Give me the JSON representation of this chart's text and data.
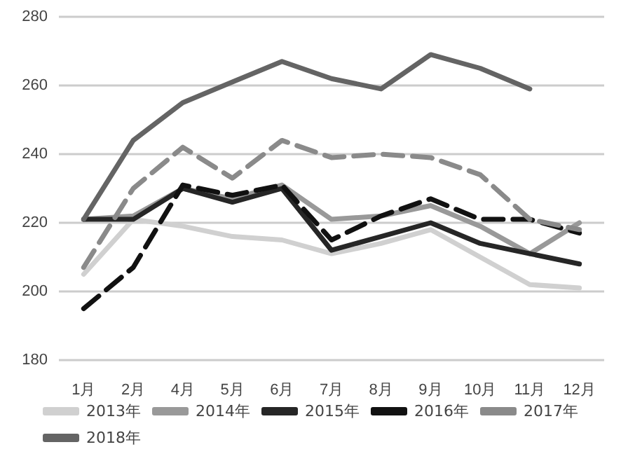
{
  "chart_data": {
    "type": "line",
    "categories": [
      "1月",
      "2月",
      "4月",
      "5月",
      "6月",
      "7月",
      "8月",
      "9月",
      "10月",
      "11月",
      "12月"
    ],
    "ylim": [
      180,
      280
    ],
    "yticks": [
      180,
      200,
      220,
      240,
      260,
      280
    ],
    "grid": "y",
    "legend": "bottom",
    "marker": "none",
    "series": [
      {
        "name": "2013年",
        "color": "#d0d0d0",
        "line_style": "solid",
        "values": [
          205,
          221,
          219,
          216,
          215,
          211,
          214,
          218,
          210,
          202,
          201
        ]
      },
      {
        "name": "2014年",
        "color": "#999999",
        "line_style": "solid",
        "values": [
          221,
          222,
          230,
          227,
          231,
          221,
          222,
          225,
          219,
          211,
          220
        ]
      },
      {
        "name": "2015年",
        "color": "#262626",
        "line_style": "solid",
        "values": [
          221,
          221,
          230,
          226,
          230,
          212,
          216,
          220,
          214,
          211,
          208
        ]
      },
      {
        "name": "2016年",
        "color": "#111111",
        "line_style": "dashed",
        "values": [
          195,
          207,
          231,
          228,
          231,
          215,
          222,
          227,
          221,
          221,
          217
        ]
      },
      {
        "name": "2017年",
        "color": "#8a8a8a",
        "line_style": "dashed",
        "values": [
          207,
          230,
          242,
          233,
          244,
          239,
          240,
          239,
          234,
          221,
          218
        ]
      },
      {
        "name": "2018年",
        "color": "#646464",
        "line_style": "solid",
        "values": [
          221,
          244,
          255,
          261,
          267,
          262,
          259,
          269,
          265,
          259,
          null
        ]
      }
    ]
  }
}
